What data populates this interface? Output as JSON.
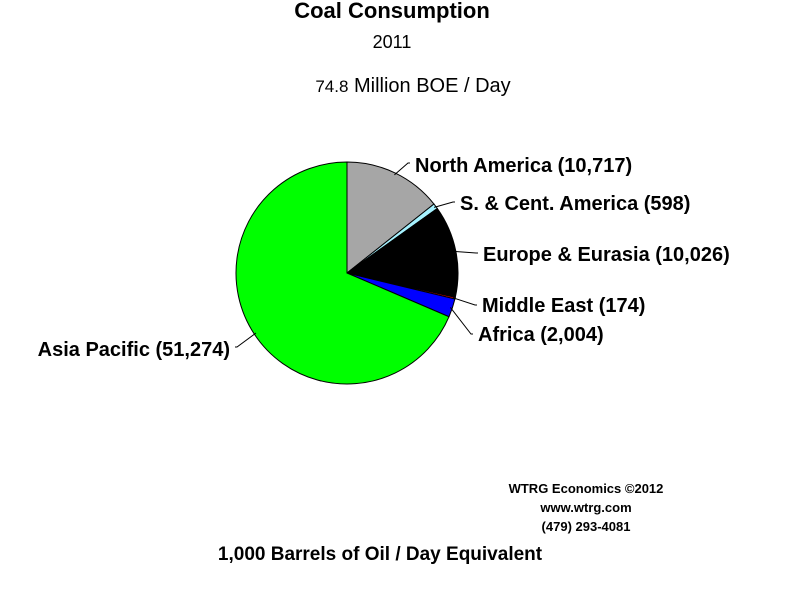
{
  "title": "Coal Consumption",
  "subtitle": "2011",
  "total": {
    "value": "74.8",
    "unit": "Million BOE / Day"
  },
  "credit": {
    "line1": "WTRG Economics  ©2012",
    "line2": "www.wtrg.com",
    "line3": "(479) 293-4081"
  },
  "footer": "1,000 Barrels of Oil / Day Equivalent",
  "chart_data": {
    "type": "pie",
    "title": "Coal Consumption",
    "subtitle": "2011",
    "unit": "1,000 Barrels of Oil / Day Equivalent",
    "slices": [
      {
        "label": "North America (10,717)",
        "value": 10717,
        "color": "#a6a6a6"
      },
      {
        "label": "S. & Cent. America (598)",
        "value": 598,
        "color": "#a6f2ff"
      },
      {
        "label": "Europe & Eurasia (10,026)",
        "value": 10026,
        "color": "#000000"
      },
      {
        "label": "Middle East (174)",
        "value": 174,
        "color": "#ff0000"
      },
      {
        "label": "Africa (2,004)",
        "value": 2004,
        "color": "#0000ff"
      },
      {
        "label": "Asia Pacific (51,274)",
        "value": 51274,
        "color": "#00ff00"
      }
    ]
  }
}
